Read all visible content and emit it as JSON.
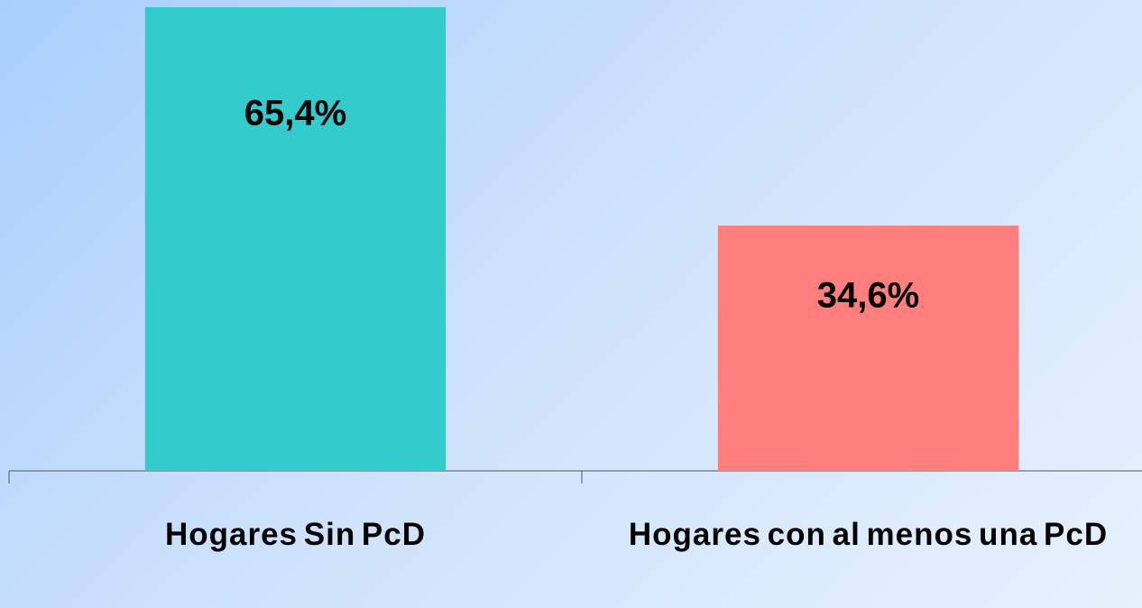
{
  "chart_data": {
    "type": "bar",
    "categories": [
      "Hogares Sin PcD",
      "Hogares con al menos una PcD"
    ],
    "values": [
      65.4,
      34.6
    ],
    "value_labels": [
      "65,4%",
      "34,6%"
    ],
    "colors": [
      "#33cccc",
      "#ff7f7f"
    ]
  }
}
